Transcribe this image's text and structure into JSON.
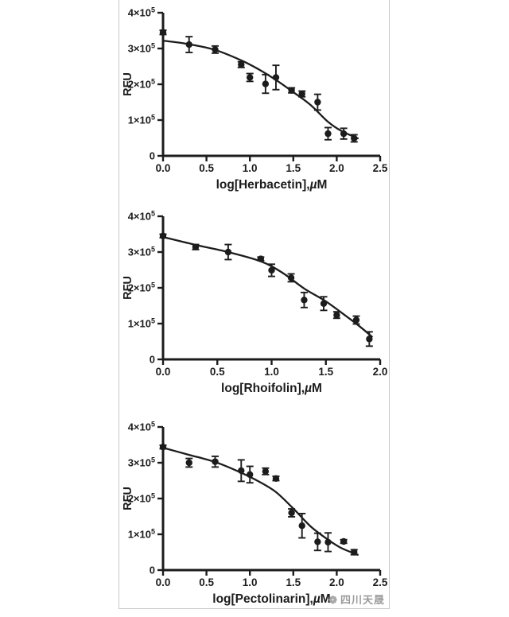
{
  "watermark": {
    "text": "四川天晟",
    "icon": "flower-logo"
  },
  "colors": {
    "ink": "#1c1c1c",
    "frame_border": "#c9c9c9",
    "watermark_gray": "#9b9b9b",
    "background": "#ffffff"
  },
  "chart_data": [
    {
      "type": "scatter",
      "title": "",
      "xlabel": "log[Herbacetin],µM",
      "ylabel": "RFU",
      "xlim": [
        0,
        2.5
      ],
      "ylim": [
        0,
        400000
      ],
      "x_ticks": [
        0.0,
        0.5,
        1.0,
        1.5,
        2.0,
        2.5
      ],
      "x_tick_labels": [
        "0.0",
        "0.5",
        "1.0",
        "1.5",
        "2.0",
        "2.5"
      ],
      "y_ticks": [
        0,
        100000,
        200000,
        300000,
        400000
      ],
      "y_tick_labels": [
        {
          "m": "0",
          "e": ""
        },
        {
          "m": "1×10",
          "e": "5"
        },
        {
          "m": "2×10",
          "e": "5"
        },
        {
          "m": "3×10",
          "e": "5"
        },
        {
          "m": "4×10",
          "e": "5"
        }
      ],
      "grid": false,
      "legend": null,
      "points": [
        {
          "x": 0.0,
          "y": 345000,
          "err": 6000
        },
        {
          "x": 0.3,
          "y": 311000,
          "err": 22000
        },
        {
          "x": 0.6,
          "y": 297000,
          "err": 10000
        },
        {
          "x": 0.9,
          "y": 255000,
          "err": 8000
        },
        {
          "x": 1.0,
          "y": 219000,
          "err": 11000
        },
        {
          "x": 1.18,
          "y": 201000,
          "err": 26000
        },
        {
          "x": 1.3,
          "y": 219000,
          "err": 34000
        },
        {
          "x": 1.48,
          "y": 183000,
          "err": 7000
        },
        {
          "x": 1.6,
          "y": 173000,
          "err": 8000
        },
        {
          "x": 1.78,
          "y": 150000,
          "err": 22000
        },
        {
          "x": 1.9,
          "y": 62000,
          "err": 17000
        },
        {
          "x": 2.08,
          "y": 62000,
          "err": 15000
        },
        {
          "x": 2.2,
          "y": 49000,
          "err": 10000
        }
      ],
      "fit_curve": [
        [
          0.0,
          322000
        ],
        [
          0.3,
          312000
        ],
        [
          0.6,
          296000
        ],
        [
          0.9,
          267000
        ],
        [
          1.1,
          242000
        ],
        [
          1.3,
          212000
        ],
        [
          1.5,
          178000
        ],
        [
          1.7,
          142000
        ],
        [
          1.9,
          95000
        ],
        [
          2.05,
          70000
        ],
        [
          2.25,
          48000
        ]
      ]
    },
    {
      "type": "scatter",
      "title": "",
      "xlabel": "log[Rhoifolin],µM",
      "ylabel": "RFU",
      "xlim": [
        0,
        2.0
      ],
      "ylim": [
        0,
        400000
      ],
      "x_ticks": [
        0.0,
        0.5,
        1.0,
        1.5,
        2.0
      ],
      "x_tick_labels": [
        "0.0",
        "0.5",
        "1.0",
        "1.5",
        "2.0"
      ],
      "y_ticks": [
        0,
        100000,
        200000,
        300000,
        400000
      ],
      "y_tick_labels": [
        {
          "m": "0",
          "e": ""
        },
        {
          "m": "1×10",
          "e": "5"
        },
        {
          "m": "2×10",
          "e": "5"
        },
        {
          "m": "3×10",
          "e": "5"
        },
        {
          "m": "4×10",
          "e": "5"
        }
      ],
      "grid": false,
      "legend": null,
      "points": [
        {
          "x": 0.0,
          "y": 345000,
          "err": 5000
        },
        {
          "x": 0.3,
          "y": 314000,
          "err": 7000
        },
        {
          "x": 0.6,
          "y": 300000,
          "err": 21000
        },
        {
          "x": 0.9,
          "y": 281000,
          "err": 5000
        },
        {
          "x": 1.0,
          "y": 249000,
          "err": 17000
        },
        {
          "x": 1.18,
          "y": 228000,
          "err": 11000
        },
        {
          "x": 1.3,
          "y": 166000,
          "err": 21000
        },
        {
          "x": 1.48,
          "y": 156000,
          "err": 19000
        },
        {
          "x": 1.6,
          "y": 124000,
          "err": 9000
        },
        {
          "x": 1.78,
          "y": 110000,
          "err": 11000
        },
        {
          "x": 1.9,
          "y": 57000,
          "err": 20000
        }
      ],
      "fit_curve": [
        [
          0.0,
          342000
        ],
        [
          0.3,
          320000
        ],
        [
          0.6,
          300000
        ],
        [
          0.9,
          274000
        ],
        [
          1.1,
          242000
        ],
        [
          1.3,
          198000
        ],
        [
          1.5,
          162000
        ],
        [
          1.7,
          118000
        ],
        [
          1.8,
          95000
        ],
        [
          1.93,
          62000
        ]
      ]
    },
    {
      "type": "scatter",
      "title": "",
      "xlabel": "log[Pectolinarin],µM",
      "ylabel": "RFU",
      "xlim": [
        0,
        2.5
      ],
      "ylim": [
        0,
        400000
      ],
      "x_ticks": [
        0.0,
        0.5,
        1.0,
        1.5,
        2.0,
        2.5
      ],
      "x_tick_labels": [
        "0.0",
        "0.5",
        "1.0",
        "1.5",
        "2.0",
        "2.5"
      ],
      "y_ticks": [
        0,
        100000,
        200000,
        300000,
        400000
      ],
      "y_tick_labels": [
        {
          "m": "0",
          "e": ""
        },
        {
          "m": "1×10",
          "e": "5"
        },
        {
          "m": "2×10",
          "e": "5"
        },
        {
          "m": "3×10",
          "e": "5"
        },
        {
          "m": "4×10",
          "e": "5"
        }
      ],
      "grid": false,
      "legend": null,
      "points": [
        {
          "x": 0.0,
          "y": 344000,
          "err": 5000
        },
        {
          "x": 0.3,
          "y": 300000,
          "err": 12000
        },
        {
          "x": 0.6,
          "y": 303000,
          "err": 15000
        },
        {
          "x": 0.9,
          "y": 278000,
          "err": 30000
        },
        {
          "x": 1.0,
          "y": 267000,
          "err": 23000
        },
        {
          "x": 1.18,
          "y": 276000,
          "err": 9000
        },
        {
          "x": 1.3,
          "y": 256000,
          "err": 6000
        },
        {
          "x": 1.48,
          "y": 160000,
          "err": 11000
        },
        {
          "x": 1.6,
          "y": 124000,
          "err": 34000
        },
        {
          "x": 1.78,
          "y": 79000,
          "err": 24000
        },
        {
          "x": 1.9,
          "y": 78000,
          "err": 26000
        },
        {
          "x": 2.08,
          "y": 80000,
          "err": 5000
        },
        {
          "x": 2.2,
          "y": 50000,
          "err": 7000
        }
      ],
      "fit_curve": [
        [
          0.0,
          342000
        ],
        [
          0.3,
          322000
        ],
        [
          0.6,
          302000
        ],
        [
          0.9,
          272000
        ],
        [
          1.1,
          248000
        ],
        [
          1.3,
          218000
        ],
        [
          1.5,
          172000
        ],
        [
          1.7,
          122000
        ],
        [
          1.9,
          85000
        ],
        [
          2.05,
          62000
        ],
        [
          2.25,
          42000
        ]
      ]
    }
  ]
}
